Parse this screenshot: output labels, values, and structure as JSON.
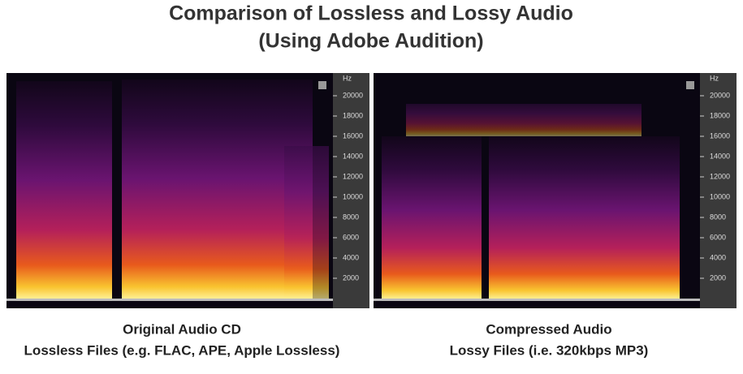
{
  "title": [
    "Comparison of Lossless and Lossy Audio",
    "(Using Adobe Audition)"
  ],
  "panels": [
    {
      "unit": "Hz",
      "yticks": [
        20000,
        18000,
        16000,
        14000,
        12000,
        10000,
        8000,
        6000,
        4000,
        2000
      ],
      "caption": [
        "Original Audio CD",
        "Lossless Files (e.g. FLAC, APE, Apple Lossless)"
      ]
    },
    {
      "unit": "Hz",
      "yticks": [
        20000,
        18000,
        16000,
        14000,
        12000,
        10000,
        8000,
        6000,
        4000,
        2000
      ],
      "caption": [
        "Compressed Audio",
        "Lossy Files (i.e. 320kbps MP3)"
      ]
    }
  ]
}
